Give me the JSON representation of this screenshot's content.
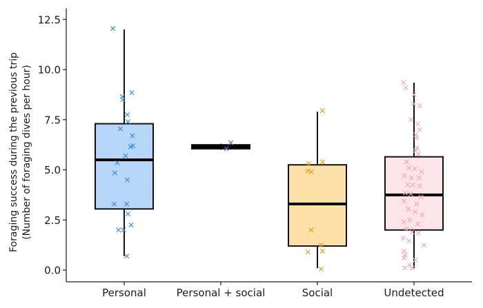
{
  "chart_data": {
    "type": "box",
    "ylabel_line1": "Foraging success during the previous trip",
    "ylabel_line2": "(Number of foraging dives per hour)",
    "xlabel": "",
    "ylim": [
      -0.6,
      12.8
    ],
    "yticks": [
      "0.0",
      "2.5",
      "5.0",
      "7.5",
      "10.0",
      "12.5"
    ],
    "categories": [
      "Personal",
      "Personal + social",
      "Social",
      "Undetected"
    ],
    "grid": false,
    "legend": "none",
    "boxes": [
      {
        "category": "Personal",
        "q1": 3.05,
        "median": 5.5,
        "q3": 7.3,
        "whisker_low": 0.7,
        "whisker_high": 12.0,
        "fill": "#b7d7f8",
        "point_color": "#3a8fd8"
      },
      {
        "category": "Personal + social",
        "q1": 6.05,
        "median": 6.15,
        "q3": 6.25,
        "whisker_low": 6.0,
        "whisker_high": 6.3,
        "fill": "#c9c9f4",
        "point_color": "#6a6ad0"
      },
      {
        "category": "Social",
        "q1": 1.2,
        "median": 3.3,
        "q3": 5.25,
        "whisker_low": 0.1,
        "whisker_high": 7.9,
        "fill": "#fde0a8",
        "point_color": "#e0a21b"
      },
      {
        "category": "Undetected",
        "q1": 2.0,
        "median": 3.75,
        "q3": 5.65,
        "whisker_low": 0.1,
        "whisker_high": 9.35,
        "fill": "#fde4ea",
        "point_color": "#f0a8bc"
      }
    ],
    "points": [
      [
        {
          "x": -0.18,
          "y": 12.05
        },
        {
          "x": 0.12,
          "y": 8.85
        },
        {
          "x": -0.03,
          "y": 8.65
        },
        {
          "x": -0.02,
          "y": 8.5
        },
        {
          "x": 0.05,
          "y": 7.75
        },
        {
          "x": 0.06,
          "y": 7.4
        },
        {
          "x": -0.06,
          "y": 7.05
        },
        {
          "x": 0.13,
          "y": 6.7
        },
        {
          "x": 0.14,
          "y": 6.2
        },
        {
          "x": 0.1,
          "y": 6.15
        },
        {
          "x": 0.02,
          "y": 5.7
        },
        {
          "x": -0.11,
          "y": 5.35
        },
        {
          "x": -0.15,
          "y": 4.85
        },
        {
          "x": 0.05,
          "y": 4.5
        },
        {
          "x": -0.16,
          "y": 3.3
        },
        {
          "x": 0.04,
          "y": 3.3
        },
        {
          "x": 0.06,
          "y": 2.8
        },
        {
          "x": 0.11,
          "y": 2.25
        },
        {
          "x": -0.09,
          "y": 2.0
        },
        {
          "x": -0.01,
          "y": 2.0
        },
        {
          "x": 0.04,
          "y": 0.7
        }
      ],
      [
        {
          "x": 0.16,
          "y": 6.35
        },
        {
          "x": 0.09,
          "y": 6.05
        }
      ],
      [
        {
          "x": 0.08,
          "y": 7.95
        },
        {
          "x": 0.08,
          "y": 5.4
        },
        {
          "x": -0.14,
          "y": 5.3
        },
        {
          "x": -0.15,
          "y": 4.95
        },
        {
          "x": -0.1,
          "y": 4.9
        },
        {
          "x": -0.1,
          "y": 2.0
        },
        {
          "x": 0.06,
          "y": 1.25
        },
        {
          "x": 0.08,
          "y": 0.95
        },
        {
          "x": -0.15,
          "y": 0.9
        },
        {
          "x": 0.06,
          "y": 0.05
        }
      ],
      [
        {
          "x": -0.17,
          "y": 9.35
        },
        {
          "x": -0.13,
          "y": 9.1
        },
        {
          "x": 0.0,
          "y": 8.75
        },
        {
          "x": -0.01,
          "y": 8.3
        },
        {
          "x": 0.09,
          "y": 8.2
        },
        {
          "x": -0.05,
          "y": 7.5
        },
        {
          "x": 0.06,
          "y": 7.3
        },
        {
          "x": 0.09,
          "y": 7.0
        },
        {
          "x": 0.03,
          "y": 6.75
        },
        {
          "x": 0.04,
          "y": 6.6
        },
        {
          "x": 0.05,
          "y": 6.1
        },
        {
          "x": 0.02,
          "y": 5.95
        },
        {
          "x": 0.07,
          "y": 5.8
        },
        {
          "x": -0.12,
          "y": 5.4
        },
        {
          "x": -0.08,
          "y": 5.1
        },
        {
          "x": 0.01,
          "y": 5.05
        },
        {
          "x": 0.12,
          "y": 4.9
        },
        {
          "x": -0.15,
          "y": 4.7
        },
        {
          "x": -0.04,
          "y": 4.6
        },
        {
          "x": 0.08,
          "y": 4.6
        },
        {
          "x": -0.1,
          "y": 4.25
        },
        {
          "x": -0.02,
          "y": 4.25
        },
        {
          "x": 0.09,
          "y": 4.2
        },
        {
          "x": -0.14,
          "y": 3.85
        },
        {
          "x": -0.05,
          "y": 3.8
        },
        {
          "x": 0.11,
          "y": 3.65
        },
        {
          "x": -0.16,
          "y": 3.45
        },
        {
          "x": 0.04,
          "y": 3.3
        },
        {
          "x": -0.09,
          "y": 3.05
        },
        {
          "x": 0.02,
          "y": 2.9
        },
        {
          "x": 0.13,
          "y": 2.75
        },
        {
          "x": -0.07,
          "y": 2.5
        },
        {
          "x": -0.16,
          "y": 2.4
        },
        {
          "x": 0.06,
          "y": 2.3
        },
        {
          "x": -0.12,
          "y": 2.05
        },
        {
          "x": -0.03,
          "y": 1.9
        },
        {
          "x": 0.07,
          "y": 1.85
        },
        {
          "x": -0.17,
          "y": 1.6
        },
        {
          "x": -0.08,
          "y": 1.45
        },
        {
          "x": 0.16,
          "y": 1.25
        },
        {
          "x": -0.16,
          "y": 0.95
        },
        {
          "x": -0.14,
          "y": 0.75
        },
        {
          "x": -0.16,
          "y": 0.6
        },
        {
          "x": 0.02,
          "y": 0.5
        },
        {
          "x": -0.07,
          "y": 0.25
        },
        {
          "x": -0.15,
          "y": 0.1
        },
        {
          "x": -0.03,
          "y": 0.1
        }
      ]
    ]
  }
}
